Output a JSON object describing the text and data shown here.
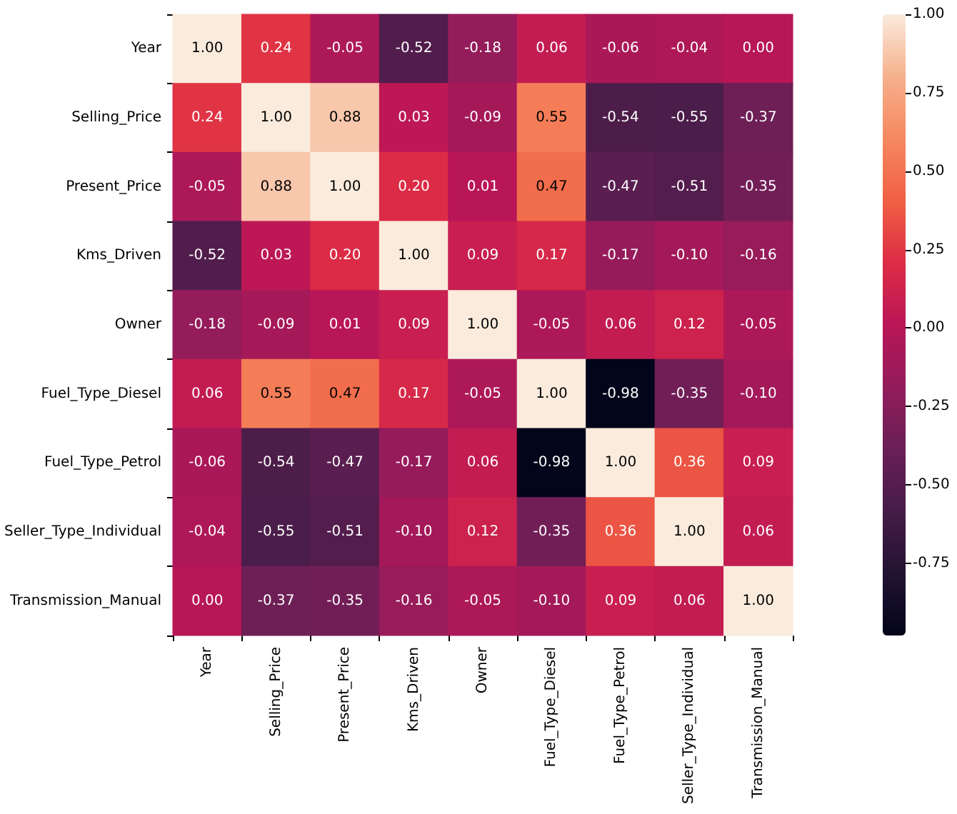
{
  "chart_data": {
    "type": "heatmap",
    "categories": [
      "Year",
      "Selling_Price",
      "Present_Price",
      "Kms_Driven",
      "Owner",
      "Fuel_Type_Diesel",
      "Fuel_Type_Petrol",
      "Seller_Type_Individual",
      "Transmission_Manual"
    ],
    "y_categories": [
      "Year",
      "Selling_Price",
      "Present_Price",
      "Kms_Driven",
      "Owner",
      "Fuel_Type_Diesel",
      "Fuel_Type_Petrol",
      "Seller_Type_Individual",
      "Transmission_Manual"
    ],
    "cells": [
      [
        1.0,
        0.24,
        -0.05,
        -0.52,
        -0.18,
        0.06,
        -0.06,
        -0.04,
        0.0
      ],
      [
        0.24,
        1.0,
        0.88,
        0.03,
        -0.09,
        0.55,
        -0.54,
        -0.55,
        -0.37
      ],
      [
        -0.05,
        0.88,
        1.0,
        0.2,
        0.01,
        0.47,
        -0.47,
        -0.51,
        -0.35
      ],
      [
        -0.52,
        0.03,
        0.2,
        1.0,
        0.09,
        0.17,
        -0.17,
        -0.1,
        -0.16
      ],
      [
        -0.18,
        -0.09,
        0.01,
        0.09,
        1.0,
        -0.05,
        0.06,
        0.12,
        -0.05
      ],
      [
        0.06,
        0.55,
        0.47,
        0.17,
        -0.05,
        1.0,
        -0.98,
        -0.35,
        -0.1
      ],
      [
        -0.06,
        -0.54,
        -0.47,
        -0.17,
        0.06,
        -0.98,
        1.0,
        0.36,
        0.09
      ],
      [
        -0.04,
        -0.55,
        -0.51,
        -0.1,
        0.12,
        -0.35,
        0.36,
        1.0,
        0.06
      ],
      [
        0.0,
        -0.37,
        -0.35,
        -0.16,
        -0.05,
        -0.1,
        0.09,
        0.06,
        1.0
      ]
    ],
    "cell_labels": [
      [
        "1.00",
        "0.24",
        "-0.05",
        "-0.52",
        "-0.18",
        "0.06",
        "-0.06",
        "-0.04",
        "0.00"
      ],
      [
        "0.24",
        "1.00",
        "0.88",
        "0.03",
        "-0.09",
        "0.55",
        "-0.54",
        "-0.55",
        "-0.37"
      ],
      [
        "-0.05",
        "0.88",
        "1.00",
        "0.20",
        "0.01",
        "0.47",
        "-0.47",
        "-0.51",
        "-0.35"
      ],
      [
        "-0.52",
        "0.03",
        "0.20",
        "1.00",
        "0.09",
        "0.17",
        "-0.17",
        "-0.10",
        "-0.16"
      ],
      [
        "-0.18",
        "-0.09",
        "0.01",
        "0.09",
        "1.00",
        "-0.05",
        "0.06",
        "0.12",
        "-0.05"
      ],
      [
        "0.06",
        "0.55",
        "0.47",
        "0.17",
        "-0.05",
        "1.00",
        "-0.98",
        "-0.35",
        "-0.10"
      ],
      [
        "-0.06",
        "-0.54",
        "-0.47",
        "-0.17",
        "0.06",
        "-0.98",
        "1.00",
        "0.36",
        "0.09"
      ],
      [
        "-0.04",
        "-0.55",
        "-0.51",
        "-0.10",
        "0.12",
        "-0.35",
        "0.36",
        "1.00",
        "0.06"
      ],
      [
        "0.00",
        "-0.37",
        "-0.35",
        "-0.16",
        "-0.05",
        "-0.10",
        "0.09",
        "0.06",
        "1.00"
      ]
    ],
    "clim": [
      -0.98,
      1.0
    ],
    "cticks": [
      {
        "value": -0.75,
        "label": "-0.75"
      },
      {
        "value": -0.5,
        "label": "-0.50"
      },
      {
        "value": -0.25,
        "label": "-0.25"
      },
      {
        "value": 0,
        "label": "0.00"
      },
      {
        "value": 0.25,
        "label": "0.25"
      },
      {
        "value": 0.5,
        "label": "0.50"
      },
      {
        "value": 0.75,
        "label": "0.75"
      },
      {
        "value": 1,
        "label": "1.00"
      }
    ],
    "data_labels": true
  }
}
